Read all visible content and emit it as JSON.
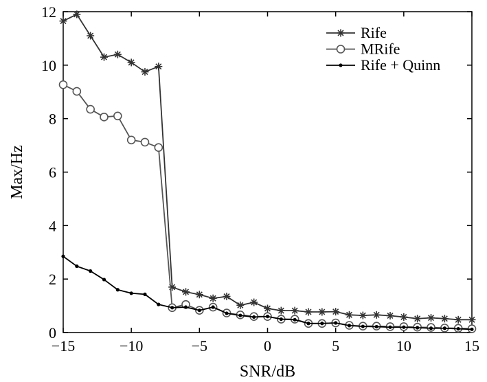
{
  "chart_data": {
    "type": "line",
    "title": "",
    "xlabel": "SNR/dB",
    "ylabel": "Max/Hz",
    "xlim": [
      -15,
      15
    ],
    "ylim": [
      0,
      12
    ],
    "xticks": [
      -15,
      -10,
      -5,
      0,
      5,
      10,
      15
    ],
    "xtick_labels": [
      "−15",
      "−10",
      "−5",
      "0",
      "5",
      "10",
      "15"
    ],
    "yticks": [
      0,
      2,
      4,
      6,
      8,
      10,
      12
    ],
    "ytick_labels": [
      "0",
      "2",
      "4",
      "6",
      "8",
      "10",
      "12"
    ],
    "grid": false,
    "legend_position": "top-right",
    "x": [
      -15,
      -14,
      -13,
      -12,
      -11,
      -10,
      -9,
      -8,
      -7,
      -6,
      -5,
      -4,
      -3,
      -2,
      -1,
      0,
      1,
      2,
      3,
      4,
      5,
      6,
      7,
      8,
      9,
      10,
      11,
      12,
      13,
      14,
      15
    ],
    "series": [
      {
        "name": "Rife",
        "marker": "star",
        "color": "#333333",
        "values": [
          11.65,
          11.9,
          11.1,
          10.3,
          10.4,
          10.1,
          9.75,
          9.95,
          1.7,
          1.52,
          1.42,
          1.28,
          1.35,
          1.02,
          1.13,
          0.9,
          0.82,
          0.82,
          0.77,
          0.77,
          0.78,
          0.66,
          0.64,
          0.66,
          0.63,
          0.58,
          0.52,
          0.55,
          0.52,
          0.48,
          0.48
        ]
      },
      {
        "name": "MRife",
        "marker": "circle",
        "color": "#555555",
        "values": [
          9.27,
          9.02,
          8.35,
          8.06,
          8.1,
          7.2,
          7.12,
          6.92,
          0.93,
          1.05,
          0.83,
          0.95,
          0.73,
          0.66,
          0.6,
          0.6,
          0.5,
          0.5,
          0.34,
          0.34,
          0.36,
          0.27,
          0.24,
          0.24,
          0.22,
          0.22,
          0.2,
          0.19,
          0.17,
          0.16,
          0.14
        ]
      },
      {
        "name": "Rife + Quinn",
        "marker": "dot",
        "color": "#000000",
        "values": [
          2.85,
          2.48,
          2.3,
          1.98,
          1.6,
          1.47,
          1.43,
          1.05,
          0.93,
          0.95,
          0.83,
          0.95,
          0.72,
          0.64,
          0.58,
          0.6,
          0.5,
          0.48,
          0.34,
          0.34,
          0.36,
          0.26,
          0.23,
          0.22,
          0.2,
          0.2,
          0.18,
          0.16,
          0.16,
          0.14,
          0.12
        ]
      }
    ]
  }
}
